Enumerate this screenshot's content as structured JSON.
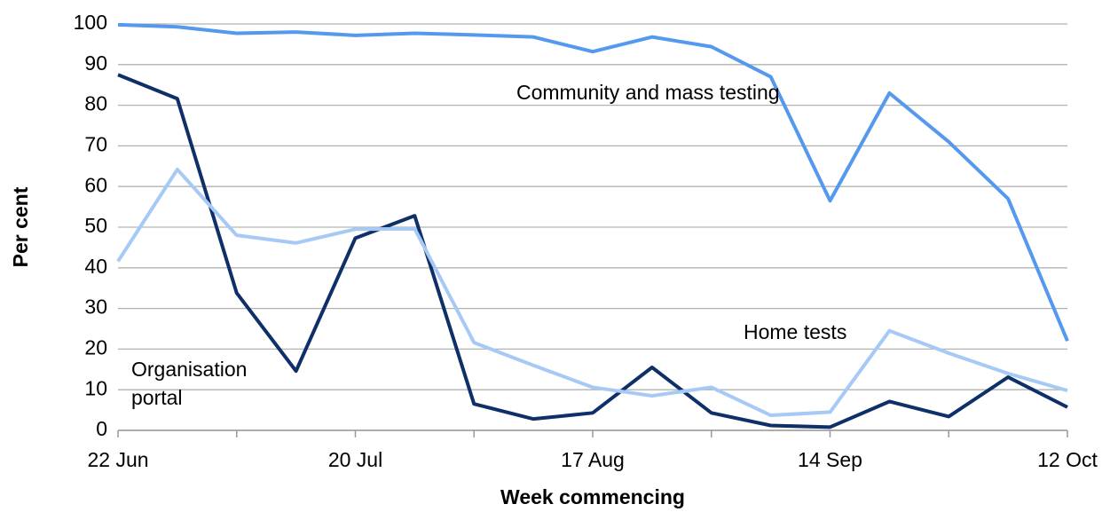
{
  "chart_data": {
    "type": "line",
    "xlabel": "Week commencing",
    "ylabel": "Per cent",
    "categories": [
      "22 Jun",
      null,
      null,
      null,
      "20 Jul",
      null,
      null,
      null,
      "17 Aug",
      null,
      null,
      null,
      "14 Sep",
      null,
      null,
      null,
      "12 Oct"
    ],
    "series": [
      {
        "name": "Community and mass testing",
        "color": "#5599ee",
        "values": [
          99.8,
          99.3,
          97.7,
          98,
          97.2,
          97.7,
          97.3,
          96.8,
          93.2,
          96.8,
          94.4,
          87,
          56.5,
          83,
          71,
          57,
          22
        ]
      },
      {
        "name": "Organisation portal",
        "color": "#0f2f68",
        "values": [
          87.5,
          81.6,
          33.8,
          14.6,
          47.3,
          52.8,
          6.5,
          2.8,
          4.3,
          15.5,
          4.3,
          1.2,
          0.8,
          7.1,
          3.4,
          13.1,
          5.7
        ]
      },
      {
        "name": "Home tests",
        "color": "#a7c9f5",
        "values": [
          41.6,
          64.2,
          48,
          46.1,
          49.5,
          49.6,
          21.6,
          16,
          10.6,
          8.5,
          10.6,
          3.7,
          4.5,
          24.5,
          19,
          14,
          9.8
        ]
      }
    ],
    "ylim": [
      0,
      100
    ],
    "yticks": [
      0,
      10,
      20,
      30,
      40,
      50,
      60,
      70,
      80,
      90,
      100
    ],
    "grid": true
  }
}
